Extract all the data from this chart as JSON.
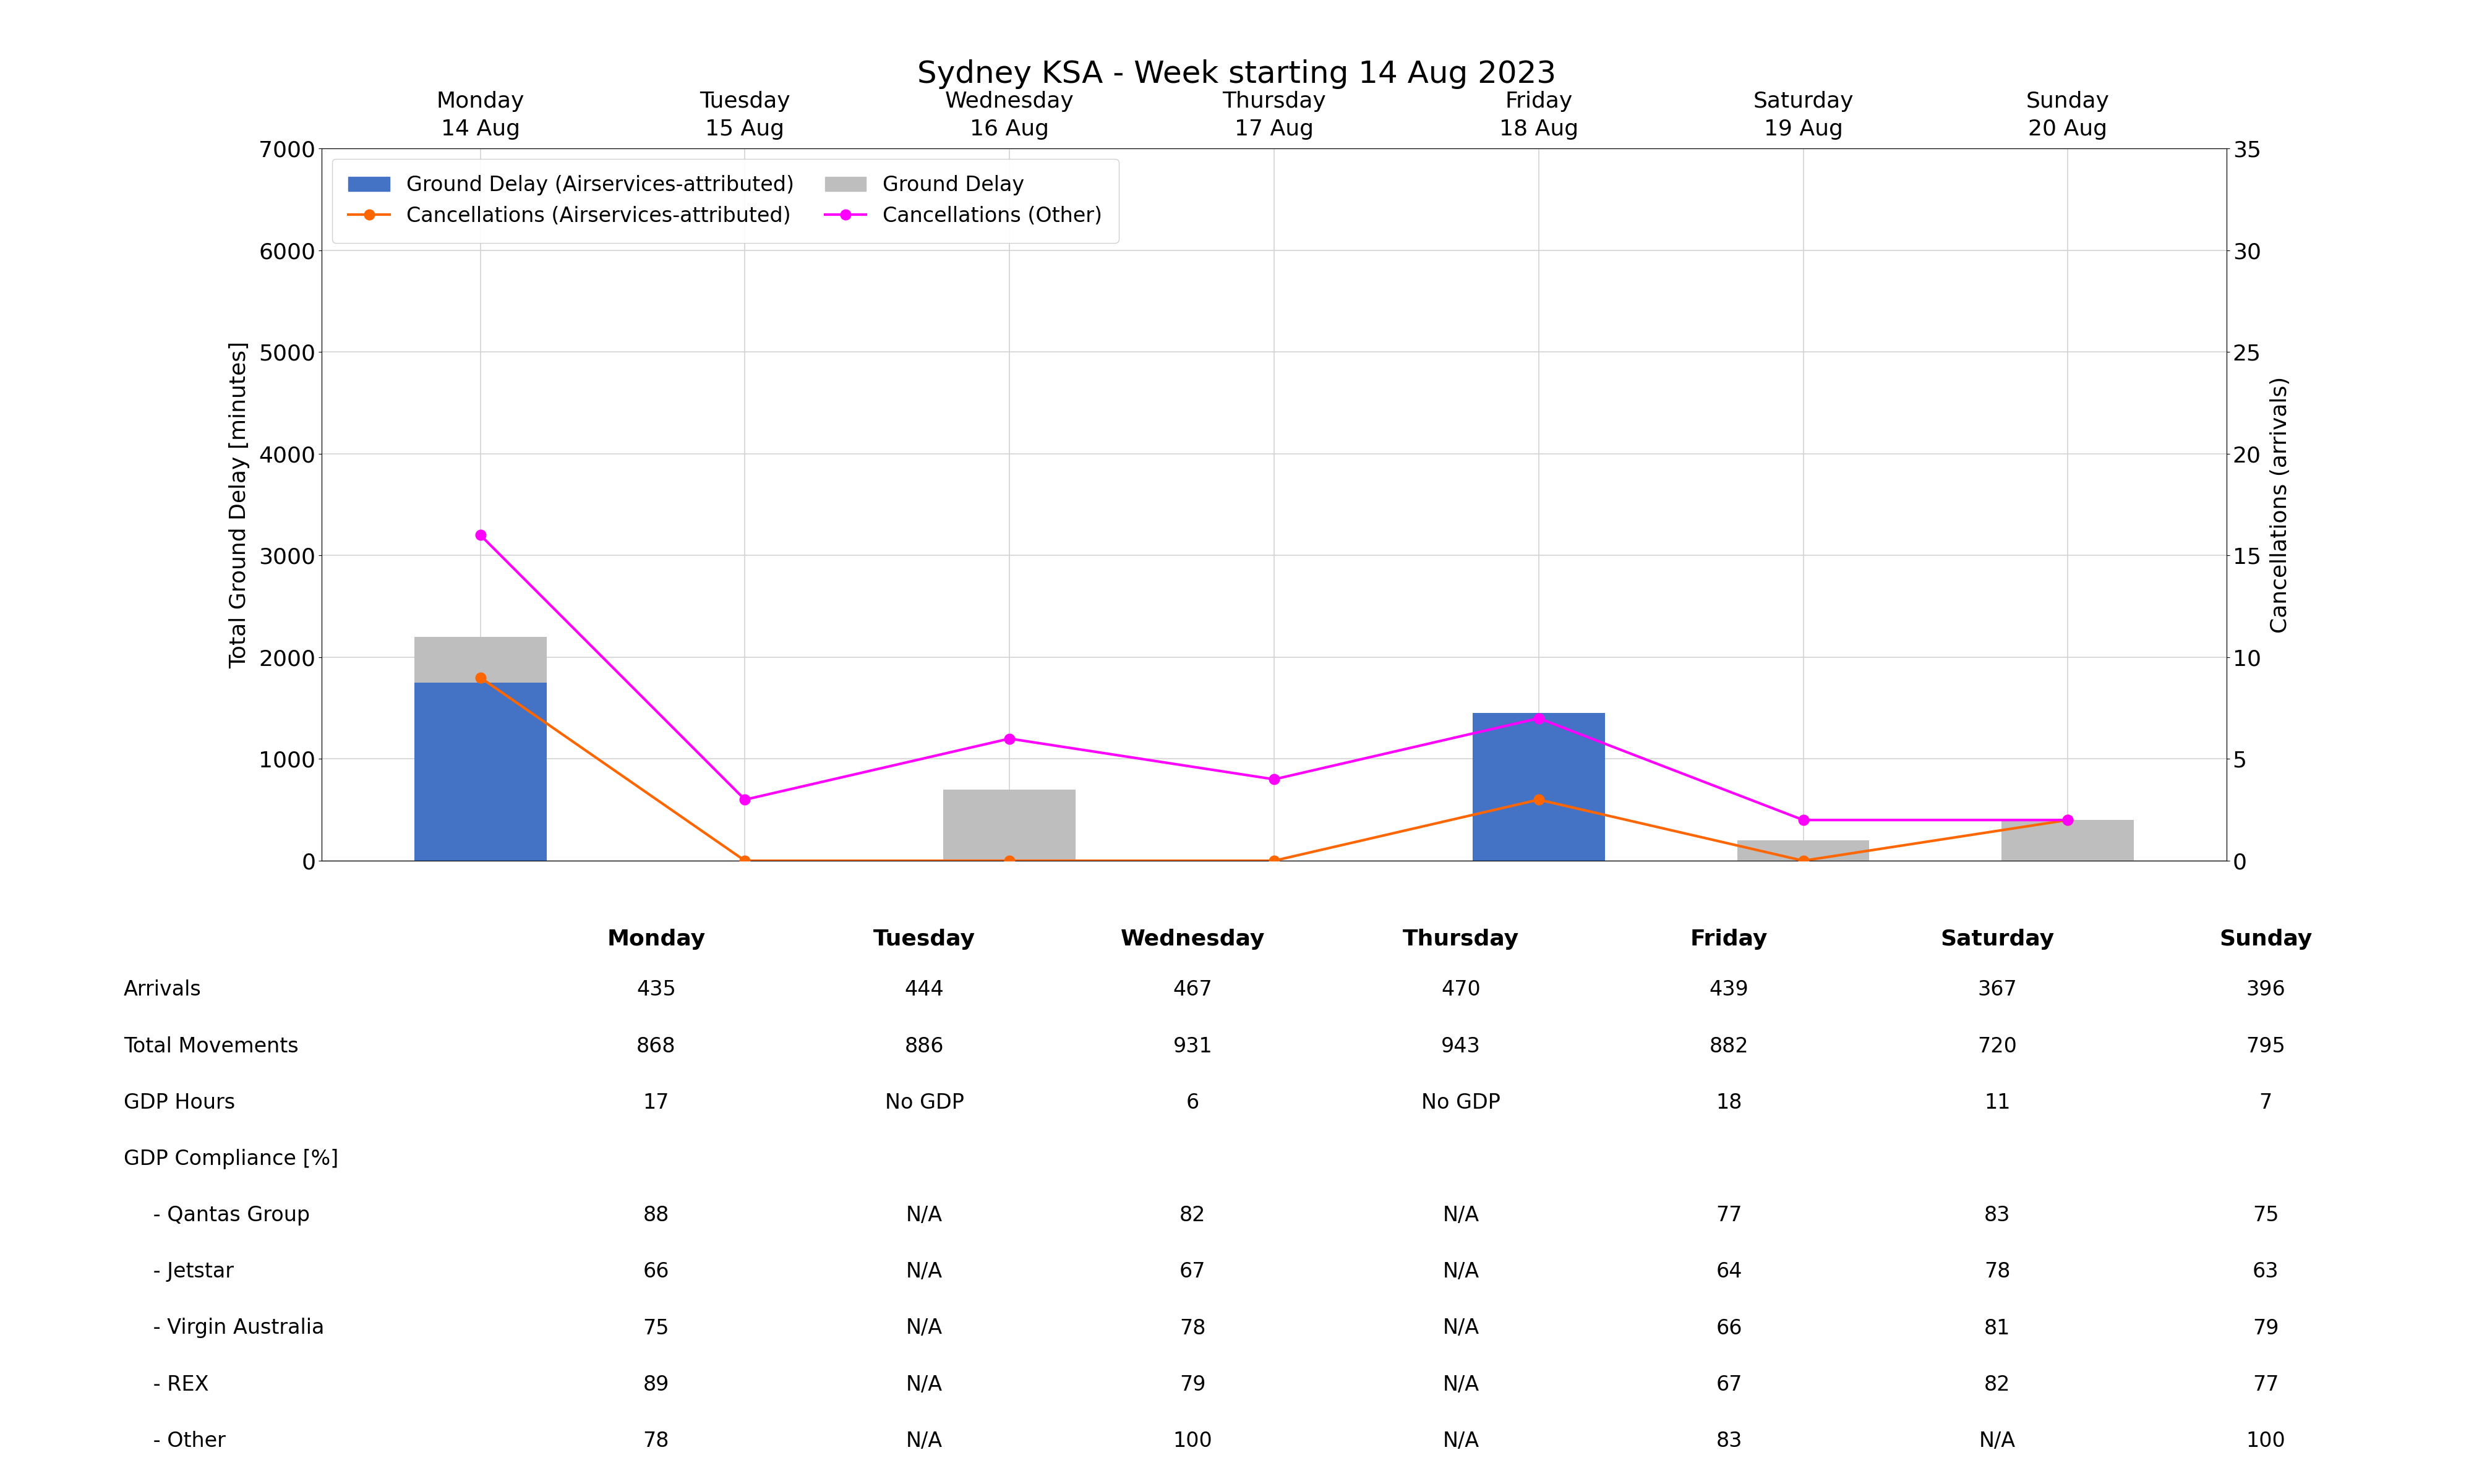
{
  "title": "Sydney KSA - Week starting 14 Aug 2023",
  "days": [
    "Monday\n14 Aug",
    "Tuesday\n15 Aug",
    "Wednesday\n16 Aug",
    "Thursday\n17 Aug",
    "Friday\n18 Aug",
    "Saturday\n19 Aug",
    "Sunday\n20 Aug"
  ],
  "days_table": [
    "Monday",
    "Tuesday",
    "Wednesday",
    "Thursday",
    "Friday",
    "Saturday",
    "Sunday"
  ],
  "ground_delay_attributed": [
    1750,
    0,
    0,
    0,
    1450,
    0,
    0
  ],
  "ground_delay_total": [
    2200,
    0,
    700,
    0,
    1450,
    200,
    400
  ],
  "cancellations_attributed": [
    9,
    0,
    0,
    0,
    3,
    0,
    2
  ],
  "cancellations_other": [
    16,
    3,
    6,
    4,
    7,
    2,
    2
  ],
  "bar_color_attributed": "#4472C4",
  "bar_color_total": "#BEBEBE",
  "line_color_attributed": "#FF6600",
  "line_color_other": "#FF00FF",
  "ylabel_left": "Total Ground Delay [minutes]",
  "ylabel_right": "Cancellations (arrivals)",
  "ylim_left": [
    0,
    7000
  ],
  "ylim_right": [
    0,
    35
  ],
  "yticks_left": [
    0,
    1000,
    2000,
    3000,
    4000,
    5000,
    6000,
    7000
  ],
  "yticks_right": [
    0,
    5,
    10,
    15,
    20,
    25,
    30,
    35
  ],
  "legend_labels": [
    "Ground Delay (Airservices-attributed)",
    "Ground Delay",
    "Cancellations (Airservices-attributed)",
    "Cancellations (Other)"
  ],
  "table_rows": [
    "Arrivals",
    "Total Movements",
    "GDP Hours",
    "GDP Compliance [%]",
    " - Qantas Group",
    " - Jetstar",
    " - Virgin Australia",
    " - REX",
    " - Other"
  ],
  "table_data": [
    [
      "435",
      "444",
      "467",
      "470",
      "439",
      "367",
      "396"
    ],
    [
      "868",
      "886",
      "931",
      "943",
      "882",
      "720",
      "795"
    ],
    [
      "17",
      "No GDP",
      "6",
      "No GDP",
      "18",
      "11",
      "7"
    ],
    [
      "",
      "",
      "",
      "",
      "",
      "",
      ""
    ],
    [
      "88",
      "N/A",
      "82",
      "N/A",
      "77",
      "83",
      "75"
    ],
    [
      "66",
      "N/A",
      "67",
      "N/A",
      "64",
      "78",
      "63"
    ],
    [
      "75",
      "N/A",
      "78",
      "N/A",
      "66",
      "81",
      "79"
    ],
    [
      "89",
      "N/A",
      "79",
      "N/A",
      "67",
      "82",
      "77"
    ],
    [
      "78",
      "N/A",
      "100",
      "N/A",
      "83",
      "N/A",
      "100"
    ]
  ],
  "title_fontsize": 36,
  "tick_fontsize": 26,
  "label_fontsize": 26,
  "legend_fontsize": 24,
  "table_header_fontsize": 26,
  "table_data_fontsize": 24,
  "bar_width": 0.5
}
